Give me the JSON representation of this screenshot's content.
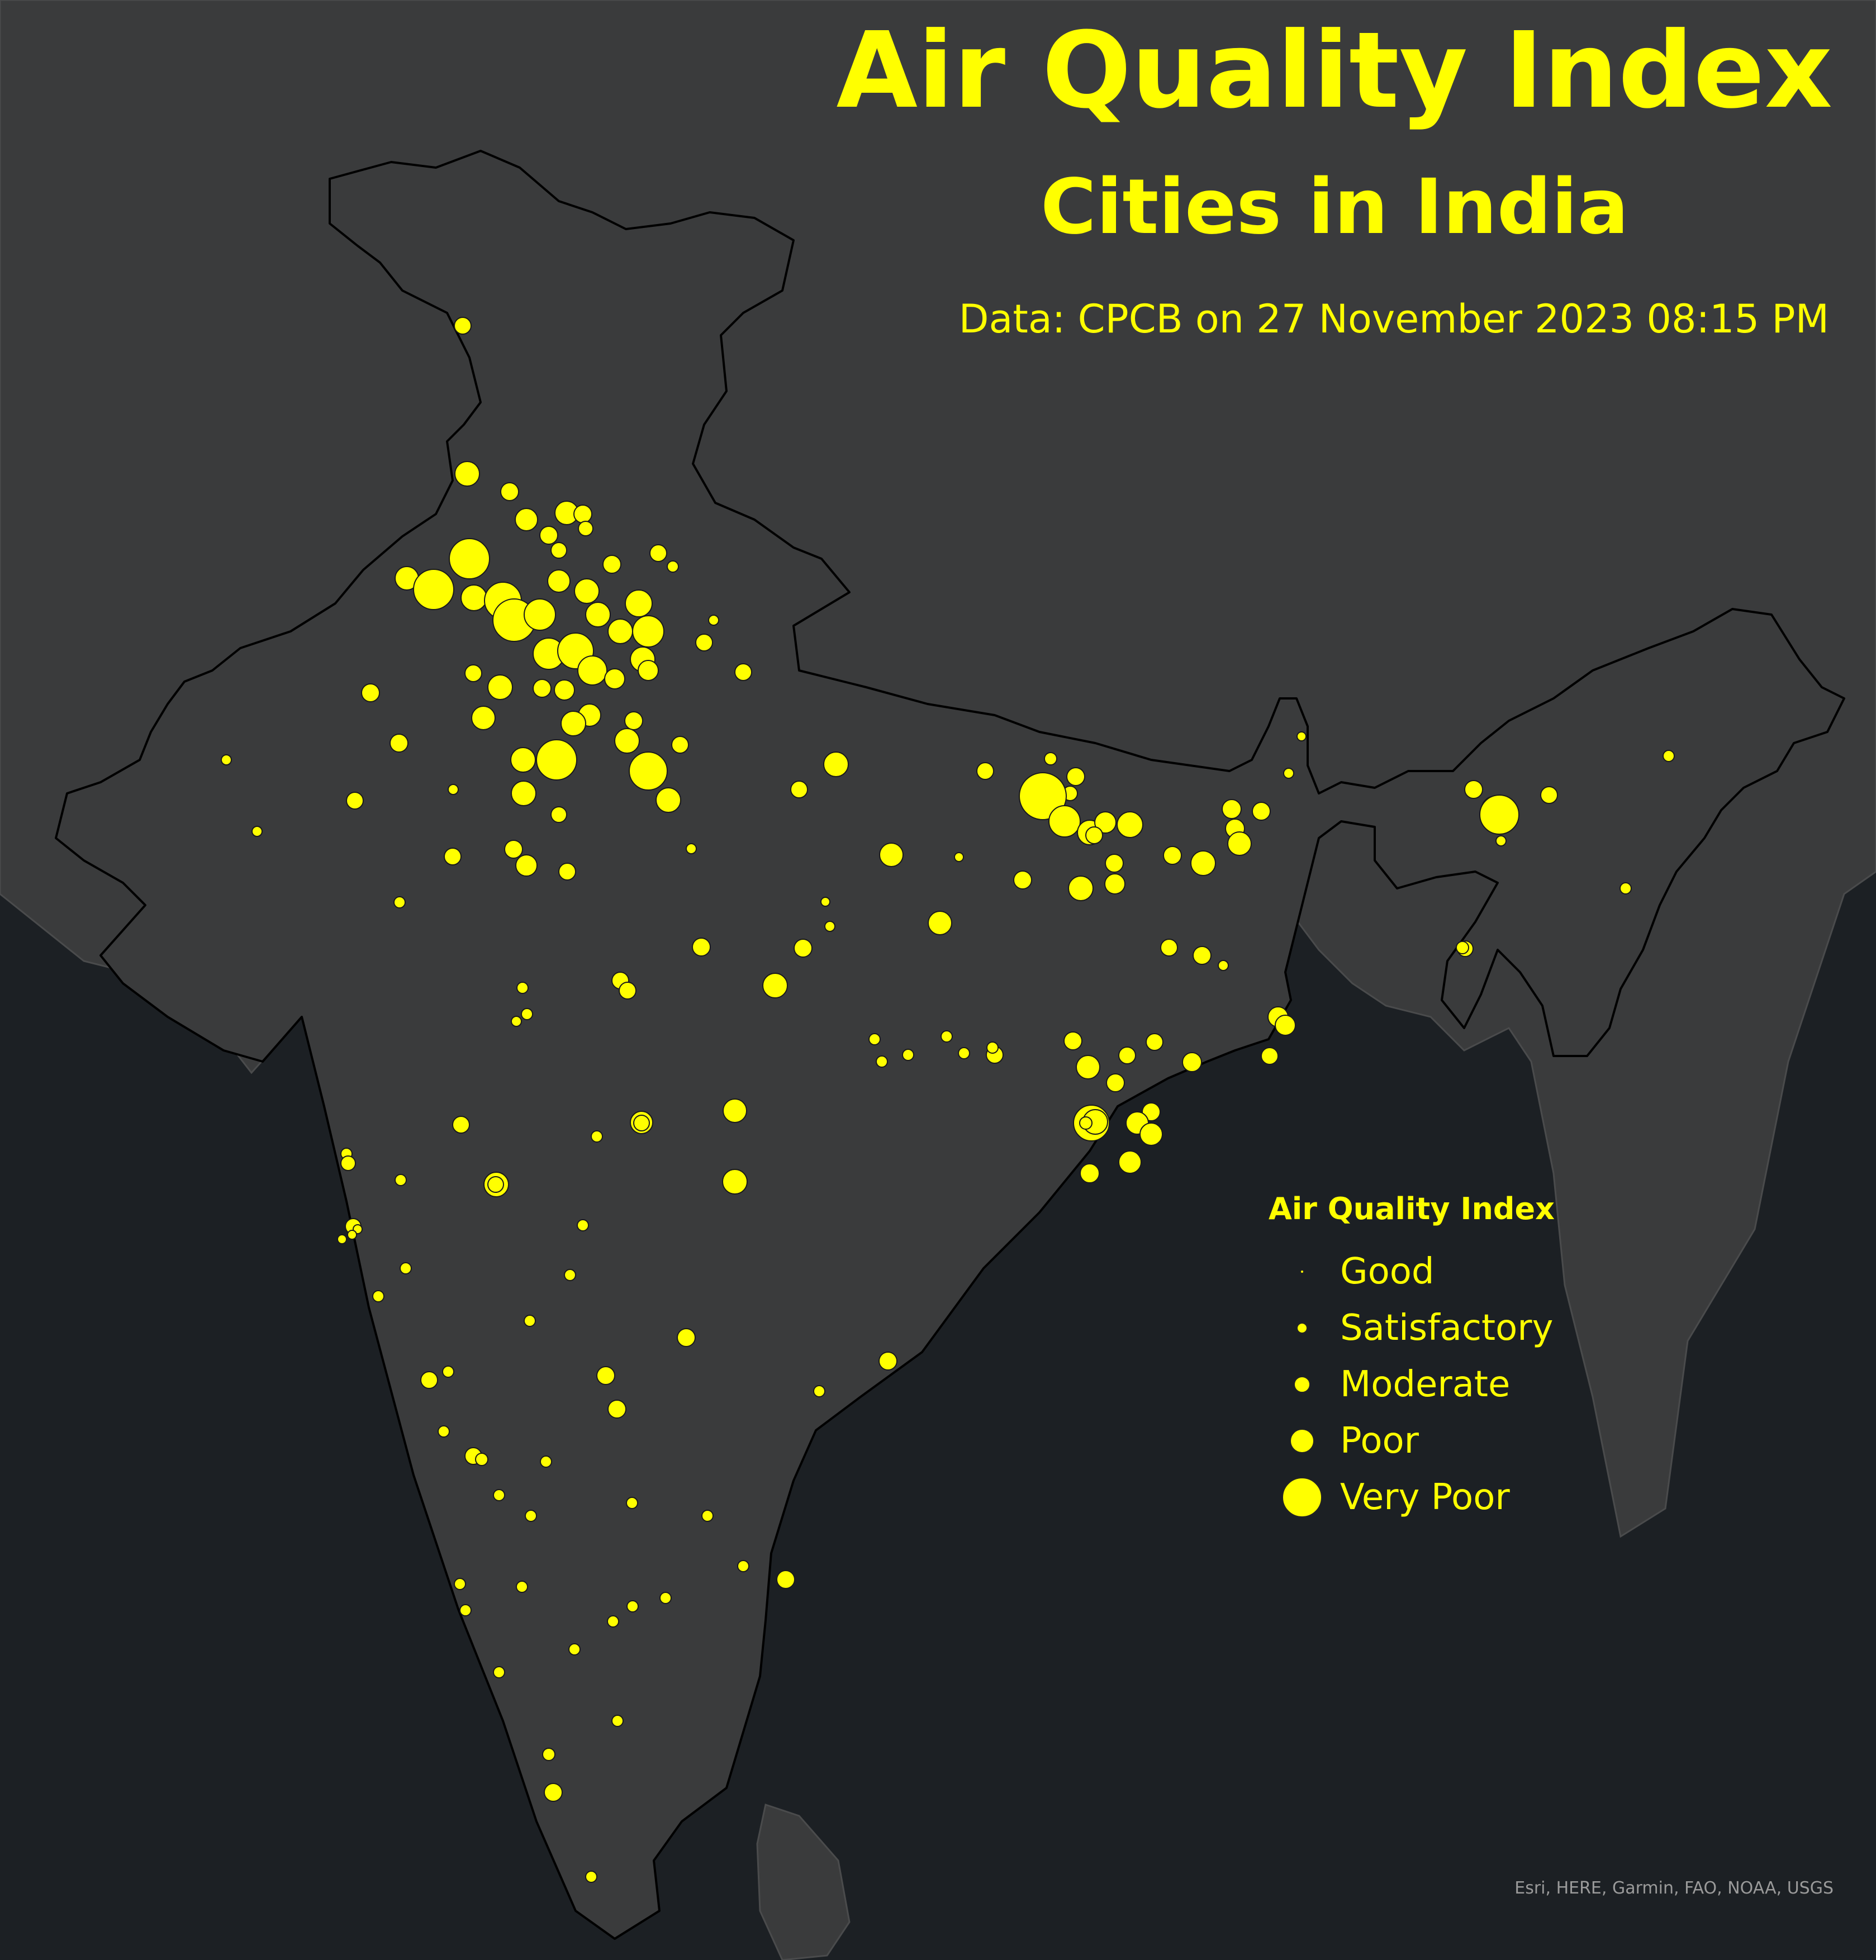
{
  "title": "Air Quality Index",
  "subtitle": "Cities in India",
  "data_source": "Data:  CPCB on 27 November 2023 08:15 PM",
  "legend": {
    "title": "Air Quality Index",
    "items": [
      {
        "label": "Good",
        "level": 1
      },
      {
        "label": "Satisfactory",
        "level": 2
      },
      {
        "label": "Moderate",
        "level": 3
      },
      {
        "label": "Poor",
        "level": 4
      },
      {
        "label": "Very Poor",
        "level": 5
      }
    ]
  },
  "attribution": "Esri, HERE, Garmin, FAO, NOAA, USGS",
  "colors": {
    "ocean": "#1c2024",
    "land": "#3a3b3c",
    "border": "#000000",
    "marker": "#ffff00",
    "text": "#ffff00",
    "attribution": "#9a9a9a"
  }
}
